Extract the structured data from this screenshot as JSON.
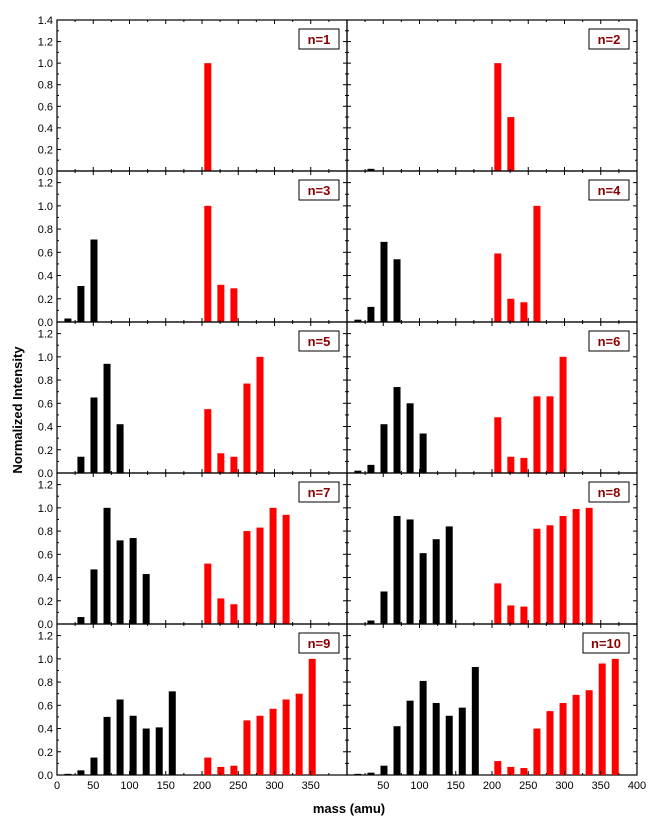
{
  "figure": {
    "ylabel": "Normalized Intensity",
    "xlabel": "mass (amu)",
    "x_ticks": [
      "0",
      "50",
      "100",
      "150",
      "200",
      "250",
      "300",
      "350",
      "400"
    ],
    "y_ticks": [
      "0.0",
      "0.2",
      "0.4",
      "0.6",
      "0.8",
      "1.0",
      "1.2"
    ],
    "y_ticks_top": [
      "0.0",
      "0.2",
      "0.4",
      "0.6",
      "0.8",
      "1.0",
      "1.2",
      "1.4"
    ],
    "colors": {
      "low_mass": "#000000",
      "high_mass": "#ff0000",
      "label_text": "#8b0000"
    }
  },
  "chart_data": [
    {
      "type": "bar",
      "label": "n=1",
      "xlim": [
        0,
        400
      ],
      "ylim": [
        0,
        1.4
      ],
      "x_unit": "amu",
      "series": [
        {
          "color": "#000000",
          "x": [],
          "values": []
        },
        {
          "color": "#ff0000",
          "x": [
            208
          ],
          "values": [
            1.0
          ]
        }
      ]
    },
    {
      "type": "bar",
      "label": "n=2",
      "xlim": [
        0,
        400
      ],
      "ylim": [
        0,
        1.4
      ],
      "x_unit": "amu",
      "series": [
        {
          "color": "#000000",
          "x": [
            33
          ],
          "values": [
            0.02
          ]
        },
        {
          "color": "#ff0000",
          "x": [
            208,
            226
          ],
          "values": [
            1.0,
            0.5
          ]
        }
      ]
    },
    {
      "type": "bar",
      "label": "n=3",
      "xlim": [
        0,
        400
      ],
      "ylim": [
        0,
        1.3
      ],
      "x_unit": "amu",
      "series": [
        {
          "color": "#000000",
          "x": [
            15,
            33,
            51
          ],
          "values": [
            0.03,
            0.31,
            0.71
          ]
        },
        {
          "color": "#ff0000",
          "x": [
            208,
            226,
            244
          ],
          "values": [
            1.0,
            0.32,
            0.29
          ]
        }
      ]
    },
    {
      "type": "bar",
      "label": "n=4",
      "xlim": [
        0,
        400
      ],
      "ylim": [
        0,
        1.3
      ],
      "x_unit": "amu",
      "series": [
        {
          "color": "#000000",
          "x": [
            15,
            33,
            51,
            69
          ],
          "values": [
            0.02,
            0.13,
            0.69,
            0.54
          ]
        },
        {
          "color": "#ff0000",
          "x": [
            208,
            226,
            244,
            262
          ],
          "values": [
            0.59,
            0.2,
            0.17,
            1.0
          ]
        }
      ]
    },
    {
      "type": "bar",
      "label": "n=5",
      "xlim": [
        0,
        400
      ],
      "ylim": [
        0,
        1.3
      ],
      "x_unit": "amu",
      "series": [
        {
          "color": "#000000",
          "x": [
            33,
            51,
            69,
            87
          ],
          "values": [
            0.14,
            0.65,
            0.94,
            0.42
          ]
        },
        {
          "color": "#ff0000",
          "x": [
            208,
            226,
            244,
            262,
            280
          ],
          "values": [
            0.55,
            0.17,
            0.14,
            0.77,
            1.0
          ]
        }
      ]
    },
    {
      "type": "bar",
      "label": "n=6",
      "xlim": [
        0,
        400
      ],
      "ylim": [
        0,
        1.3
      ],
      "x_unit": "amu",
      "series": [
        {
          "color": "#000000",
          "x": [
            15,
            33,
            51,
            69,
            87,
            105
          ],
          "values": [
            0.02,
            0.07,
            0.42,
            0.74,
            0.6,
            0.34
          ]
        },
        {
          "color": "#ff0000",
          "x": [
            208,
            226,
            244,
            262,
            280,
            298
          ],
          "values": [
            0.48,
            0.14,
            0.13,
            0.66,
            0.66,
            1.0
          ]
        }
      ]
    },
    {
      "type": "bar",
      "label": "n=7",
      "xlim": [
        0,
        400
      ],
      "ylim": [
        0,
        1.3
      ],
      "x_unit": "amu",
      "series": [
        {
          "color": "#000000",
          "x": [
            33,
            51,
            69,
            87,
            105,
            123
          ],
          "values": [
            0.06,
            0.47,
            1.0,
            0.72,
            0.74,
            0.43
          ]
        },
        {
          "color": "#ff0000",
          "x": [
            208,
            226,
            244,
            262,
            280,
            298,
            316
          ],
          "values": [
            0.52,
            0.22,
            0.17,
            0.8,
            0.83,
            1.0,
            0.94
          ]
        }
      ]
    },
    {
      "type": "bar",
      "label": "n=8",
      "xlim": [
        0,
        400
      ],
      "ylim": [
        0,
        1.3
      ],
      "x_unit": "amu",
      "series": [
        {
          "color": "#000000",
          "x": [
            33,
            51,
            69,
            87,
            105,
            123,
            141
          ],
          "values": [
            0.03,
            0.28,
            0.93,
            0.9,
            0.61,
            0.73,
            0.84
          ]
        },
        {
          "color": "#ff0000",
          "x": [
            208,
            226,
            244,
            262,
            280,
            298,
            316,
            334
          ],
          "values": [
            0.35,
            0.16,
            0.15,
            0.82,
            0.85,
            0.93,
            0.99,
            1.0
          ]
        }
      ]
    },
    {
      "type": "bar",
      "label": "n=9",
      "xlim": [
        0,
        400
      ],
      "ylim": [
        0,
        1.3
      ],
      "x_unit": "amu",
      "series": [
        {
          "color": "#000000",
          "x": [
            15,
            33,
            51,
            69,
            87,
            105,
            123,
            141,
            159
          ],
          "values": [
            0.01,
            0.04,
            0.15,
            0.5,
            0.65,
            0.51,
            0.4,
            0.41,
            0.72
          ]
        },
        {
          "color": "#ff0000",
          "x": [
            208,
            226,
            244,
            262,
            280,
            298,
            316,
            334,
            352
          ],
          "values": [
            0.15,
            0.07,
            0.08,
            0.47,
            0.51,
            0.57,
            0.65,
            0.7,
            1.0
          ]
        }
      ]
    },
    {
      "type": "bar",
      "label": "n=10",
      "xlim": [
        0,
        400
      ],
      "ylim": [
        0,
        1.3
      ],
      "x_unit": "amu",
      "series": [
        {
          "color": "#000000",
          "x": [
            15,
            33,
            51,
            69,
            87,
            105,
            123,
            141,
            159,
            177
          ],
          "values": [
            0.01,
            0.02,
            0.08,
            0.42,
            0.64,
            0.81,
            0.62,
            0.51,
            0.58,
            0.93
          ]
        },
        {
          "color": "#ff0000",
          "x": [
            208,
            226,
            244,
            262,
            280,
            298,
            316,
            334,
            352,
            370
          ],
          "values": [
            0.12,
            0.07,
            0.06,
            0.4,
            0.55,
            0.62,
            0.69,
            0.73,
            0.96,
            1.0
          ]
        }
      ]
    }
  ]
}
